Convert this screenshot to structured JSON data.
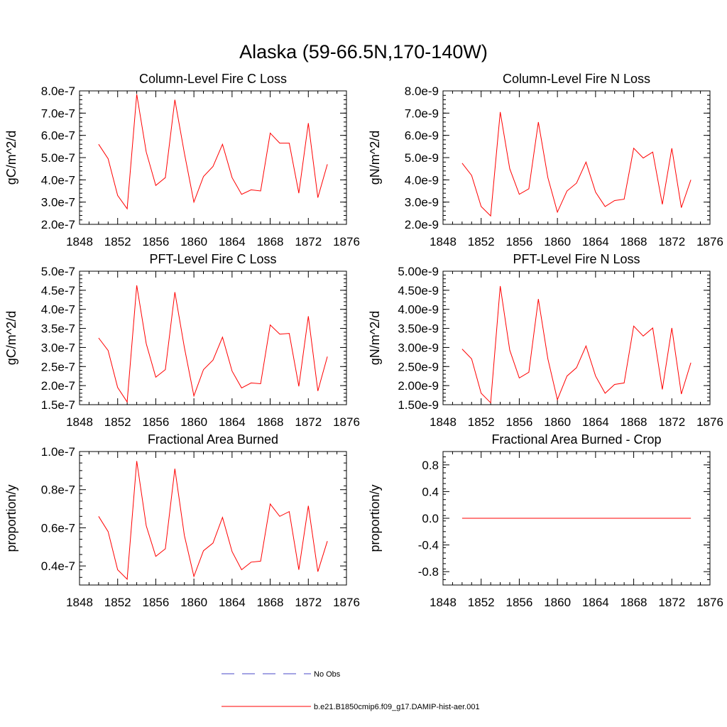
{
  "figure": {
    "title": "Alaska (59-66.5N,170-140W)",
    "colors": {
      "series": "#ff0000",
      "obs": "#4a4ac8",
      "frame": "#000000"
    }
  },
  "legend": [
    {
      "label": "No Obs",
      "style": "dashed",
      "color": "#4a4ac8"
    },
    {
      "label": "b.e21.B1850cmip6.f09_g17.DAMIP-hist-aer.001",
      "style": "solid",
      "color": "#ff0000"
    }
  ],
  "chart_data": [
    {
      "type": "line",
      "title": "Column-Level Fire C Loss",
      "ylabel": "gC/m^2/d",
      "xlim": [
        1848,
        1876
      ],
      "xticks": [
        "1848",
        "1852",
        "1856",
        "1860",
        "1864",
        "1868",
        "1872",
        "1876"
      ],
      "ylim": [
        2e-07,
        8e-07
      ],
      "yticks": [
        "2.0e-7",
        "3.0e-7",
        "4.0e-7",
        "5.0e-7",
        "6.0e-7",
        "7.0e-7",
        "8.0e-7"
      ],
      "x": [
        1850,
        1851,
        1852,
        1853,
        1854,
        1855,
        1856,
        1857,
        1858,
        1859,
        1860,
        1861,
        1862,
        1863,
        1864,
        1865,
        1866,
        1867,
        1868,
        1869,
        1870,
        1871,
        1872,
        1873,
        1874
      ],
      "y": [
        5.6e-07,
        4.95e-07,
        3.3e-07,
        2.7e-07,
        7.85e-07,
        5.25e-07,
        3.75e-07,
        4.1e-07,
        7.6e-07,
        5.2e-07,
        3e-07,
        4.15e-07,
        4.6e-07,
        5.6e-07,
        4.1e-07,
        3.35e-07,
        3.55e-07,
        3.5e-07,
        6.1e-07,
        5.65e-07,
        5.65e-07,
        3.4e-07,
        6.55e-07,
        3.2e-07,
        4.7e-07
      ]
    },
    {
      "type": "line",
      "title": "Column-Level Fire N Loss",
      "ylabel": "gN/m^2/d",
      "xlim": [
        1848,
        1876
      ],
      "xticks": [
        "1848",
        "1852",
        "1856",
        "1860",
        "1864",
        "1868",
        "1872",
        "1876"
      ],
      "ylim": [
        2e-09,
        8e-09
      ],
      "yticks": [
        "2.0e-9",
        "3.0e-9",
        "4.0e-9",
        "5.0e-9",
        "6.0e-9",
        "7.0e-9",
        "8.0e-9"
      ],
      "x": [
        1850,
        1851,
        1852,
        1853,
        1854,
        1855,
        1856,
        1857,
        1858,
        1859,
        1860,
        1861,
        1862,
        1863,
        1864,
        1865,
        1866,
        1867,
        1868,
        1869,
        1870,
        1871,
        1872,
        1873,
        1874
      ],
      "y": [
        4.75e-09,
        4.2e-09,
        2.8e-09,
        2.38e-09,
        7.05e-09,
        4.5e-09,
        3.35e-09,
        3.6e-09,
        6.6e-09,
        4.1e-09,
        2.55e-09,
        3.5e-09,
        3.85e-09,
        4.8e-09,
        3.45e-09,
        2.8e-09,
        3.07e-09,
        3.13e-09,
        5.42e-09,
        4.98e-09,
        5.25e-09,
        2.9e-09,
        5.42e-09,
        2.75e-09,
        4e-09
      ]
    },
    {
      "type": "line",
      "title": "PFT-Level Fire C Loss",
      "ylabel": "gC/m^2/d",
      "xlim": [
        1848,
        1876
      ],
      "xticks": [
        "1848",
        "1852",
        "1856",
        "1860",
        "1864",
        "1868",
        "1872",
        "1876"
      ],
      "ylim": [
        1.5e-07,
        5e-07
      ],
      "yticks": [
        "1.5e-7",
        "2.0e-7",
        "2.5e-7",
        "3.0e-7",
        "3.5e-7",
        "4.0e-7",
        "4.5e-7",
        "5.0e-7"
      ],
      "x": [
        1850,
        1851,
        1852,
        1853,
        1854,
        1855,
        1856,
        1857,
        1858,
        1859,
        1860,
        1861,
        1862,
        1863,
        1864,
        1865,
        1866,
        1867,
        1868,
        1869,
        1870,
        1871,
        1872,
        1873,
        1874
      ],
      "y": [
        3.25e-07,
        2.92e-07,
        1.95e-07,
        1.57e-07,
        4.63e-07,
        3.1e-07,
        2.22e-07,
        2.42e-07,
        4.45e-07,
        3e-07,
        1.73e-07,
        2.42e-07,
        2.67e-07,
        3.27e-07,
        2.38e-07,
        1.94e-07,
        2.07e-07,
        2.05e-07,
        3.59e-07,
        3.35e-07,
        3.37e-07,
        1.98e-07,
        3.82e-07,
        1.86e-07,
        2.76e-07
      ]
    },
    {
      "type": "line",
      "title": "PFT-Level Fire N Loss",
      "ylabel": "gN/m^2/d",
      "xlim": [
        1848,
        1876
      ],
      "xticks": [
        "1848",
        "1852",
        "1856",
        "1860",
        "1864",
        "1868",
        "1872",
        "1876"
      ],
      "ylim": [
        1.5e-09,
        5e-09
      ],
      "yticks": [
        "1.50e-9",
        "2.00e-9",
        "2.50e-9",
        "3.00e-9",
        "3.50e-9",
        "4.00e-9",
        "4.50e-9",
        "5.00e-9"
      ],
      "x": [
        1850,
        1851,
        1852,
        1853,
        1854,
        1855,
        1856,
        1857,
        1858,
        1859,
        1860,
        1861,
        1862,
        1863,
        1864,
        1865,
        1866,
        1867,
        1868,
        1869,
        1870,
        1871,
        1872,
        1873,
        1874
      ],
      "y": [
        2.96e-09,
        2.7e-09,
        1.8e-09,
        1.55e-09,
        4.61e-09,
        2.93e-09,
        2.2e-09,
        2.35e-09,
        4.27e-09,
        2.7e-09,
        1.63e-09,
        2.25e-09,
        2.47e-09,
        3.04e-09,
        2.25e-09,
        1.8e-09,
        2.03e-09,
        2.07e-09,
        3.56e-09,
        3.3e-09,
        3.51e-09,
        1.9e-09,
        3.51e-09,
        1.78e-09,
        2.6e-09
      ]
    },
    {
      "type": "line",
      "title": "Fractional Area Burned",
      "ylabel": "proportion/y",
      "xlim": [
        1848,
        1876
      ],
      "xticks": [
        "1848",
        "1852",
        "1856",
        "1860",
        "1864",
        "1868",
        "1872",
        "1876"
      ],
      "ylim": [
        3e-08,
        1e-07
      ],
      "yticks": [
        "0.4e-7",
        "0.6e-7",
        "0.8e-7",
        "1.0e-7"
      ],
      "ytick_values": [
        4e-08,
        6e-08,
        8e-08,
        1e-07
      ],
      "x": [
        1850,
        1851,
        1852,
        1853,
        1854,
        1855,
        1856,
        1857,
        1858,
        1859,
        1860,
        1861,
        1862,
        1863,
        1864,
        1865,
        1866,
        1867,
        1868,
        1869,
        1870,
        1871,
        1872,
        1873,
        1874
      ],
      "y": [
        6.6e-08,
        5.8e-08,
        3.8e-08,
        3.3e-08,
        9.5e-08,
        6.1e-08,
        4.5e-08,
        4.9e-08,
        9.1e-08,
        5.6e-08,
        3.45e-08,
        4.8e-08,
        5.2e-08,
        6.55e-08,
        4.75e-08,
        3.8e-08,
        4.2e-08,
        4.25e-08,
        7.25e-08,
        6.6e-08,
        6.85e-08,
        3.8e-08,
        7.15e-08,
        3.7e-08,
        5.3e-08
      ]
    },
    {
      "type": "line",
      "title": "Fractional Area Burned - Crop",
      "ylabel": "proportion/y",
      "xlim": [
        1848,
        1876
      ],
      "xticks": [
        "1848",
        "1852",
        "1856",
        "1860",
        "1864",
        "1868",
        "1872",
        "1876"
      ],
      "ylim": [
        -1.0,
        1.0
      ],
      "yticks": [
        "-0.8",
        "-0.4",
        "0.0",
        "0.4",
        "0.8"
      ],
      "ytick_values": [
        -0.8,
        -0.4,
        0.0,
        0.4,
        0.8
      ],
      "x": [
        1850,
        1851,
        1852,
        1853,
        1854,
        1855,
        1856,
        1857,
        1858,
        1859,
        1860,
        1861,
        1862,
        1863,
        1864,
        1865,
        1866,
        1867,
        1868,
        1869,
        1870,
        1871,
        1872,
        1873,
        1874
      ],
      "y": [
        0,
        0,
        0,
        0,
        0,
        0,
        0,
        0,
        0,
        0,
        0,
        0,
        0,
        0,
        0,
        0,
        0,
        0,
        0,
        0,
        0,
        0,
        0,
        0,
        0
      ]
    }
  ]
}
